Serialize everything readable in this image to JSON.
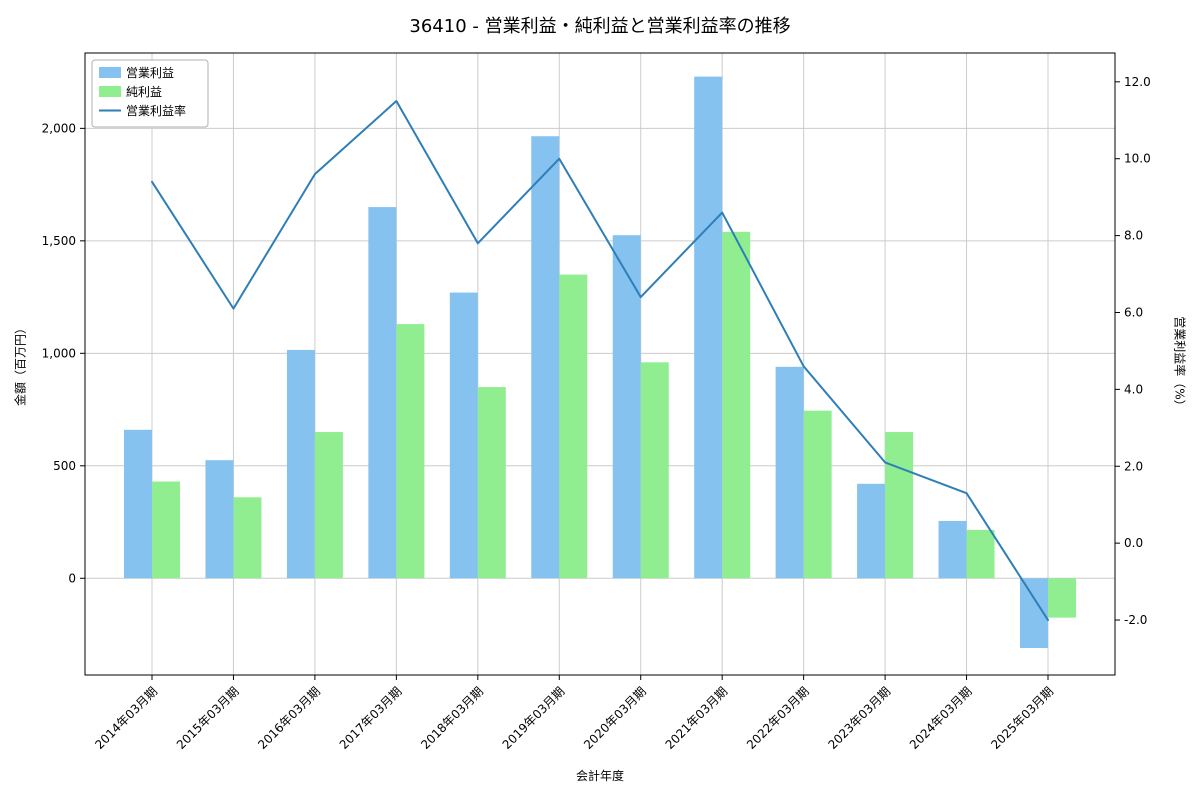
{
  "chart_data": {
    "type": "bar",
    "title": "36410 - 営業利益・純利益と営業利益率の推移",
    "xlabel": "会計年度",
    "ylabel_left": "金額（百万円）",
    "ylabel_right": "営業利益率（%）",
    "categories": [
      "2014年03月期",
      "2015年03月期",
      "2016年03月期",
      "2017年03月期",
      "2018年03月期",
      "2019年03月期",
      "2020年03月期",
      "2021年03月期",
      "2022年03月期",
      "2023年03月期",
      "2024年03月期",
      "2025年03月期"
    ],
    "series": [
      {
        "name": "営業利益",
        "type": "bar",
        "axis": "left",
        "color": "#85C2F0",
        "values": [
          660,
          525,
          1015,
          1650,
          1270,
          1965,
          1525,
          2230,
          940,
          420,
          255,
          -310
        ]
      },
      {
        "name": "純利益",
        "type": "bar",
        "axis": "left",
        "color": "#90EE90",
        "values": [
          430,
          360,
          650,
          1130,
          850,
          1350,
          960,
          1540,
          745,
          650,
          215,
          -175
        ]
      },
      {
        "name": "営業利益率",
        "type": "line",
        "axis": "right",
        "color": "#2E7EB8",
        "values": [
          9.4,
          6.1,
          9.6,
          11.5,
          7.8,
          10.0,
          6.4,
          8.6,
          4.6,
          2.1,
          1.3,
          -2.0
        ]
      }
    ],
    "ylim_left": [
      -430,
      2335
    ],
    "ylim_right": [
      -3.43,
      12.75
    ],
    "yticks_left": {
      "values": [
        0,
        500,
        1000,
        1500,
        2000
      ],
      "labels": [
        "0",
        "500",
        "1,000",
        "1,500",
        "2,000"
      ]
    },
    "yticks_right": {
      "values": [
        -2,
        0,
        2,
        4,
        6,
        8,
        10,
        12
      ],
      "labels": [
        "-2.0",
        "0.0",
        "2.0",
        "4.0",
        "6.0",
        "8.0",
        "10.0",
        "12.0"
      ]
    },
    "grid": true,
    "legend": {
      "position": "upper left",
      "entries": [
        "営業利益",
        "純利益",
        "営業利益率"
      ]
    }
  }
}
